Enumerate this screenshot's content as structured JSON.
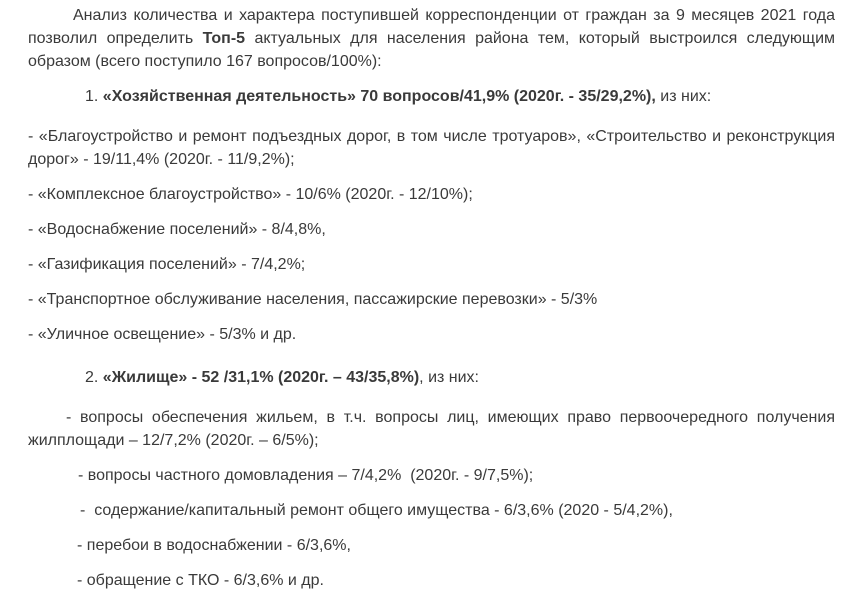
{
  "page": {
    "background_color": "#ffffff",
    "text_color": "#3a3a3a",
    "total_questions": "167",
    "period": "9 месяцев 2021 года"
  },
  "document": {
    "intro": {
      "pre": "Анализ количества и характера поступившей корреспонденции от граждан за 9 месяцев 2021 года позволил определить ",
      "bold": "Топ-5",
      "post": " актуальных для населения района тем, который выстроился следующим образом (всего поступило 167 вопросов/100%):"
    },
    "section1": {
      "heading": {
        "number": "1. ",
        "bold": "«Хозяйственная деятельность» 70 вопросов/41,9% (2020г. - 35/29,2%),",
        "rest": " из них:"
      },
      "items": [
        "- «Благоустройство и ремонт подъездных дорог, в том числе тротуаров», «Строительство и реконструкция дорог» - 19/11,4% (2020г. - 11/9,2%);",
        "- «Комплексное благоустройство» - 10/6% (2020г. - 12/10%);",
        "- «Водоснабжение поселений» - 8/4,8%,",
        "- «Газификация поселений» - 7/4,2%;",
        "- «Транспортное обслуживание населения, пассажирские перевозки» - 5/3%",
        "- «Уличное освещение» - 5/3% и др."
      ]
    },
    "section2": {
      "heading": {
        "number": "2. ",
        "bold": "«Жилище» - 52 /31,1% (2020г. – 43/35,8%)",
        "rest": ", из них:"
      },
      "items": [
        "- вопросы обеспечения жильем, в т.ч. вопросы лиц, имеющих право первоочередного получения жилплощади – 12/7,2% (2020г. – 6/5%);",
        "- вопросы частного домовладения – 7/4,2%  (2020г. - 9/7,5%);",
        "-  содержание/капитальный ремонт общего имущества - 6/3,6% (2020 - 5/4,2%),",
        "- перебои в водоснабжении - 6/3,6%,",
        "- обращение с ТКО - 6/3,6% и др."
      ]
    }
  }
}
